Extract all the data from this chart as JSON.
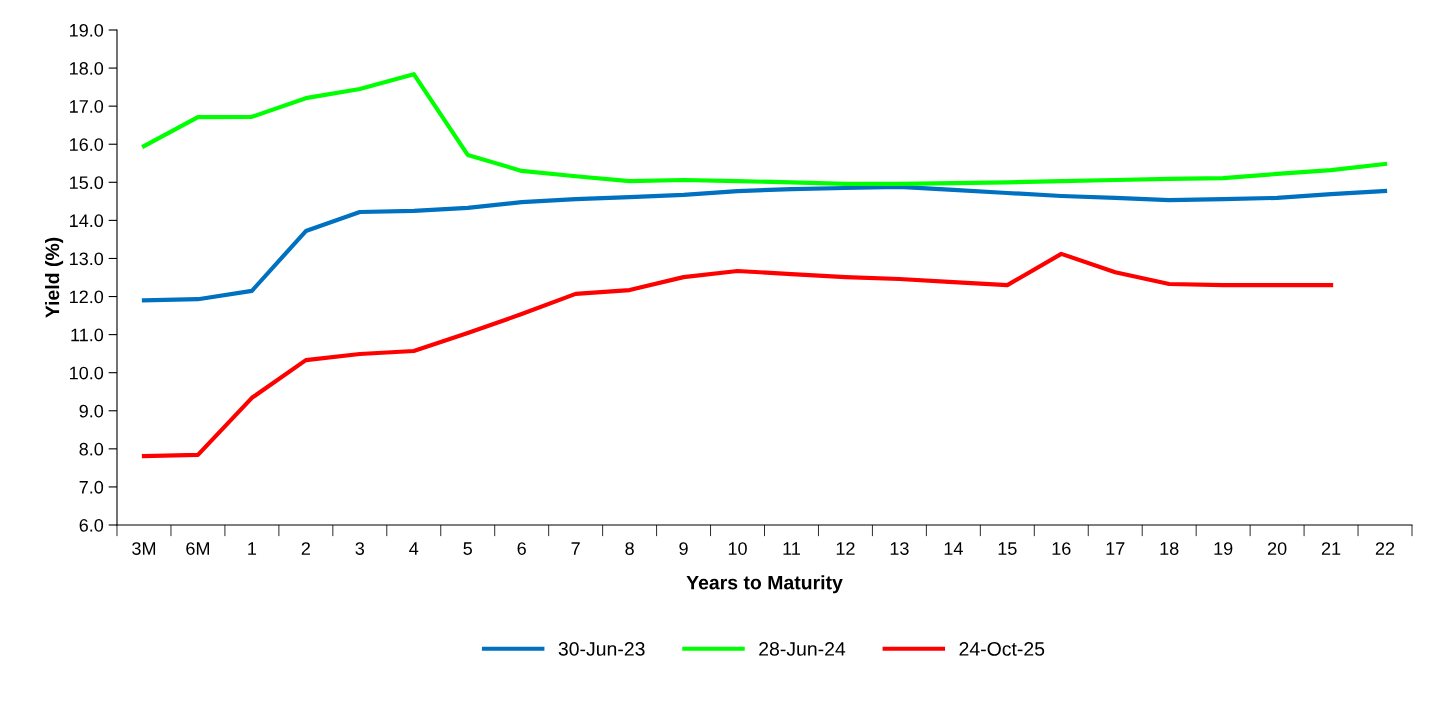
{
  "chart_data": {
    "type": "line",
    "xlabel": "Years to Maturity",
    "ylabel": "Yield (%)",
    "categories": [
      "3M",
      "6M",
      "1",
      "2",
      "3",
      "4",
      "5",
      "6",
      "7",
      "8",
      "9",
      "10",
      "11",
      "12",
      "13",
      "14",
      "15",
      "16",
      "17",
      "18",
      "19",
      "20",
      "21",
      "22"
    ],
    "series": [
      {
        "name": "30-Jun-23",
        "color": "#0070c0",
        "values": [
          11.9,
          11.93,
          12.15,
          13.72,
          14.22,
          14.25,
          14.33,
          14.48,
          14.56,
          14.61,
          14.67,
          14.77,
          14.82,
          14.85,
          14.88,
          14.8,
          14.72,
          14.64,
          14.59,
          14.53,
          14.56,
          14.59,
          14.69,
          14.77
        ]
      },
      {
        "name": "28-Jun-24",
        "color": "#00ff00",
        "values": [
          15.95,
          16.71,
          16.72,
          17.21,
          17.45,
          17.84,
          15.72,
          15.3,
          15.16,
          15.03,
          15.06,
          15.03,
          15.0,
          14.96,
          14.96,
          14.98,
          15.0,
          15.03,
          15.06,
          15.09,
          15.11,
          15.22,
          15.32,
          15.48
        ]
      },
      {
        "name": "24-Oct-25",
        "color": "#ff0000",
        "values": [
          7.81,
          7.84,
          9.34,
          10.33,
          10.49,
          10.57,
          11.04,
          11.54,
          12.07,
          12.17,
          12.51,
          12.67,
          12.59,
          12.51,
          12.46,
          12.38,
          12.3,
          13.12,
          12.64,
          12.33,
          12.3,
          12.3,
          12.3,
          null
        ]
      }
    ],
    "ylim": [
      6.0,
      19.0
    ],
    "yticks": [
      {
        "value": 6,
        "label": "6.0"
      },
      {
        "value": 7,
        "label": "7.0"
      },
      {
        "value": 8,
        "label": "8.0"
      },
      {
        "value": 9,
        "label": "9.0"
      },
      {
        "value": 10,
        "label": "10.0"
      },
      {
        "value": 11,
        "label": "11.0"
      },
      {
        "value": 12,
        "label": "12.0"
      },
      {
        "value": 13,
        "label": "13.0"
      },
      {
        "value": 14,
        "label": "14.0"
      },
      {
        "value": 15,
        "label": "15.0"
      },
      {
        "value": 16,
        "label": "16.0"
      },
      {
        "value": 17,
        "label": "17.0"
      },
      {
        "value": 18,
        "label": "18.0"
      },
      {
        "value": 19,
        "label": "19.0"
      }
    ],
    "grid": false,
    "legend": "bottom",
    "marker": "none",
    "line_style": "solid"
  }
}
